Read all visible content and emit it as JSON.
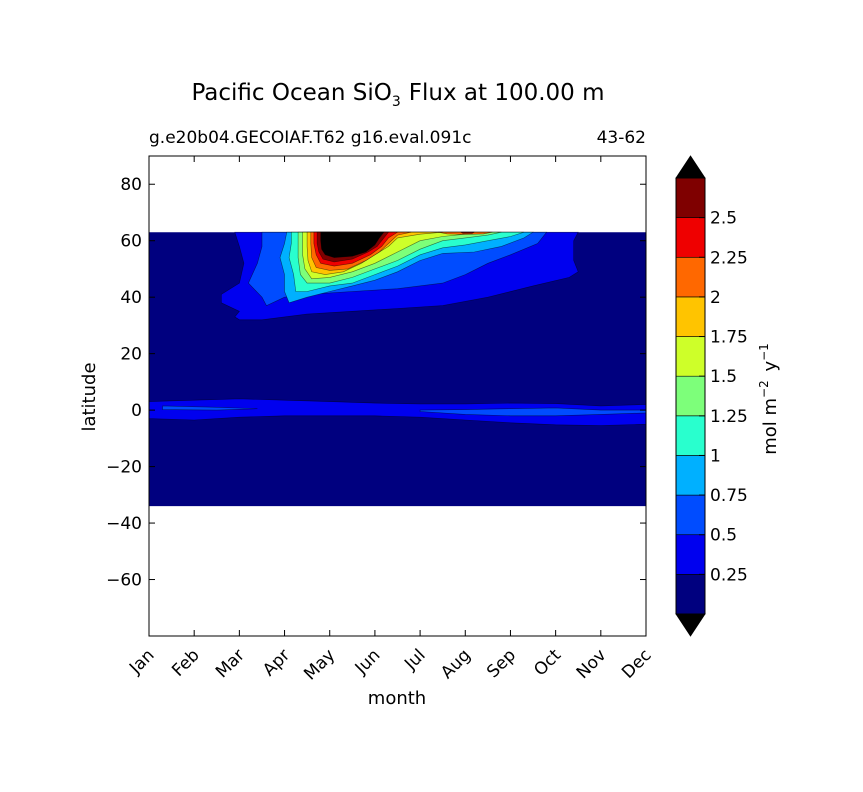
{
  "chart_data": {
    "type": "heatmap",
    "title": "Pacific Ocean SiO",
    "title_subscript": "3",
    "title_suffix": "Flux at 100.00 m",
    "subtitle_left": "g.e20b04.GECOIAF.T62 g16.eval.091c",
    "subtitle_right": "43-62",
    "xlabel": "month",
    "ylabel": "latitude",
    "x_categories": [
      "Jan",
      "Feb",
      "Mar",
      "Apr",
      "May",
      "Jun",
      "Jul",
      "Aug",
      "Sep",
      "Oct",
      "Nov",
      "Dec"
    ],
    "xlim": [
      0,
      11
    ],
    "ylim": [
      -80,
      90
    ],
    "y_ticks": [
      {
        "value": 80,
        "label": "80"
      },
      {
        "value": 60,
        "label": "60"
      },
      {
        "value": 40,
        "label": "40"
      },
      {
        "value": 20,
        "label": "20"
      },
      {
        "value": 0,
        "label": "0"
      },
      {
        "value": -20,
        "label": "−20"
      },
      {
        "value": -40,
        "label": "−40"
      },
      {
        "value": -60,
        "label": "−60"
      }
    ],
    "y_ticks_note": "",
    "data_lat_range": [
      -34,
      63
    ],
    "colorbar": {
      "label": "mol m",
      "label_sup1": "−2",
      "label_mid": " y",
      "label_sup2": "−1",
      "levels": [
        0,
        0.25,
        0.5,
        0.75,
        1,
        1.25,
        1.5,
        1.75,
        2,
        2.25,
        2.5,
        2.75
      ],
      "tick_labels": [
        "0.25",
        "0.5",
        "0.75",
        "1",
        "1.25",
        "1.5",
        "1.75",
        "2",
        "2.25",
        "2.5"
      ],
      "colors": [
        "#00007f",
        "#0000ef",
        "#004cff",
        "#00b0ff",
        "#29ffce",
        "#7dff7a",
        "#ceff29",
        "#ffc400",
        "#ff6800",
        "#ef0000",
        "#7f0000"
      ],
      "extend_low_color": "#000000",
      "extend_high_color": "#000000"
    },
    "regions": [
      {
        "level_index": 0,
        "name": "background",
        "polygon": [
          [
            0,
            63
          ],
          [
            11,
            63
          ],
          [
            11,
            -34
          ],
          [
            0,
            -34
          ]
        ]
      },
      {
        "level_index": 1,
        "name": "north-band-0.25",
        "polygon": [
          [
            1.9,
            63
          ],
          [
            9.5,
            63
          ],
          [
            9.4,
            60
          ],
          [
            9.4,
            53
          ],
          [
            9.5,
            49
          ],
          [
            9.3,
            47
          ],
          [
            8.5,
            44
          ],
          [
            7.5,
            40
          ],
          [
            6.5,
            37
          ],
          [
            5.5,
            36
          ],
          [
            4.5,
            35
          ],
          [
            3.5,
            34
          ],
          [
            2.5,
            32
          ],
          [
            2,
            32
          ],
          [
            1.9,
            33
          ],
          [
            2.0,
            35
          ],
          [
            1.6,
            38
          ],
          [
            1.6,
            41
          ],
          [
            2.0,
            45
          ],
          [
            2.1,
            52
          ],
          [
            2.0,
            58
          ]
        ]
      },
      {
        "level_index": 1,
        "name": "equatorial-band-west",
        "polygon": [
          [
            0,
            3
          ],
          [
            1,
            3.5
          ],
          [
            2,
            4
          ],
          [
            3,
            3.5
          ],
          [
            4,
            3
          ],
          [
            5,
            2.5
          ],
          [
            6,
            2.2
          ],
          [
            7,
            2.2
          ],
          [
            8,
            2.5
          ],
          [
            9,
            2.3
          ],
          [
            10,
            1.5
          ],
          [
            11,
            2
          ],
          [
            11,
            -5
          ],
          [
            10,
            -5.5
          ],
          [
            9,
            -5.2
          ],
          [
            8,
            -4.5
          ],
          [
            7,
            -3.5
          ],
          [
            6,
            -2.5
          ],
          [
            5,
            -2
          ],
          [
            4,
            -2
          ],
          [
            3,
            -2
          ],
          [
            2,
            -2.5
          ],
          [
            1,
            -3.5
          ],
          [
            0,
            -3
          ]
        ]
      },
      {
        "level_index": 2,
        "name": "north-band-0.5",
        "polygon": [
          [
            2.5,
            63
          ],
          [
            8.8,
            63
          ],
          [
            8.6,
            59
          ],
          [
            8.0,
            55
          ],
          [
            7.5,
            52
          ],
          [
            7.0,
            48
          ],
          [
            6.5,
            45
          ],
          [
            5.5,
            43
          ],
          [
            4.5,
            42
          ],
          [
            3.5,
            41
          ],
          [
            3.0,
            40
          ],
          [
            2.6,
            37
          ],
          [
            2.5,
            40
          ],
          [
            2.2,
            45
          ],
          [
            2.4,
            52
          ],
          [
            2.5,
            58
          ]
        ]
      },
      {
        "level_index": 2,
        "name": "equatorial-band-east",
        "polygon": [
          [
            6,
            0
          ],
          [
            7,
            0.2
          ],
          [
            8,
            0.5
          ],
          [
            9,
            0.8
          ],
          [
            10,
            0
          ],
          [
            11,
            0
          ],
          [
            11,
            -1
          ],
          [
            10,
            -1.5
          ],
          [
            9,
            -2
          ],
          [
            8,
            -2
          ],
          [
            7,
            -1.5
          ],
          [
            6,
            -0.5
          ]
        ]
      },
      {
        "level_index": 2,
        "name": "equatorial-band-sliver",
        "polygon": [
          [
            0.3,
            1.5
          ],
          [
            1.5,
            1.0
          ],
          [
            2.4,
            0.5
          ],
          [
            1.5,
            0.0
          ],
          [
            0.3,
            0.2
          ]
        ]
      },
      {
        "level_index": 3,
        "name": "north-band-0.75",
        "polygon": [
          [
            3.05,
            63
          ],
          [
            8.5,
            63
          ],
          [
            8.3,
            61
          ],
          [
            7.8,
            58
          ],
          [
            7.2,
            56
          ],
          [
            6.5,
            55.5
          ],
          [
            6.0,
            53
          ],
          [
            5.5,
            49
          ],
          [
            5.0,
            46
          ],
          [
            4.5,
            44
          ],
          [
            4.0,
            42
          ],
          [
            3.5,
            40
          ],
          [
            3.1,
            38
          ],
          [
            3.0,
            42
          ],
          [
            3.0,
            48
          ],
          [
            2.9,
            54
          ],
          [
            3.0,
            59
          ]
        ]
      },
      {
        "level_index": 4,
        "name": "north-band-1",
        "polygon": [
          [
            3.15,
            63
          ],
          [
            8.3,
            63
          ],
          [
            8.0,
            61.5
          ],
          [
            7.5,
            60
          ],
          [
            7.0,
            58.5
          ],
          [
            6.5,
            57.5
          ],
          [
            6.0,
            55
          ],
          [
            5.5,
            51
          ],
          [
            5.0,
            48
          ],
          [
            4.5,
            45
          ],
          [
            4.0,
            44
          ],
          [
            3.5,
            42
          ],
          [
            3.25,
            42
          ],
          [
            3.2,
            48
          ],
          [
            3.1,
            54
          ],
          [
            3.15,
            59
          ]
        ]
      },
      {
        "level_index": 5,
        "name": "north-band-1.25",
        "polygon": [
          [
            3.3,
            63
          ],
          [
            7.8,
            63
          ],
          [
            7.5,
            62
          ],
          [
            7.0,
            61
          ],
          [
            6.5,
            60
          ],
          [
            6.0,
            57
          ],
          [
            5.5,
            53
          ],
          [
            5.0,
            50
          ],
          [
            4.5,
            47
          ],
          [
            4.0,
            45
          ],
          [
            3.5,
            45
          ],
          [
            3.35,
            48
          ],
          [
            3.3,
            54
          ],
          [
            3.3,
            59
          ]
        ]
      },
      {
        "level_index": 6,
        "name": "north-band-1.5",
        "polygon": [
          [
            3.4,
            63
          ],
          [
            7.2,
            63
          ],
          [
            7.0,
            62.3
          ],
          [
            6.5,
            61.5
          ],
          [
            6.0,
            60
          ],
          [
            5.5,
            56
          ],
          [
            5.0,
            52
          ],
          [
            4.5,
            49
          ],
          [
            4.0,
            47
          ],
          [
            3.6,
            46.5
          ],
          [
            3.45,
            50
          ],
          [
            3.4,
            55
          ],
          [
            3.4,
            59
          ]
        ]
      },
      {
        "level_index": 7,
        "name": "north-band-1.75",
        "polygon": [
          [
            3.5,
            63
          ],
          [
            6.5,
            63
          ],
          [
            6.0,
            62.3
          ],
          [
            5.5,
            61
          ],
          [
            5.3,
            58
          ],
          [
            5.0,
            55
          ],
          [
            4.7,
            52
          ],
          [
            4.3,
            49
          ],
          [
            3.9,
            48
          ],
          [
            3.6,
            49
          ],
          [
            3.52,
            53
          ],
          [
            3.5,
            58
          ]
        ]
      },
      {
        "level_index": 8,
        "name": "north-band-2",
        "polygon": [
          [
            3.58,
            63
          ],
          [
            5.8,
            63
          ],
          [
            5.5,
            62
          ],
          [
            5.3,
            59
          ],
          [
            5.1,
            56
          ],
          [
            4.8,
            53
          ],
          [
            4.4,
            50
          ],
          [
            4.0,
            49.5
          ],
          [
            3.7,
            50.5
          ],
          [
            3.6,
            54
          ],
          [
            3.58,
            59
          ]
        ]
      },
      {
        "level_index": 9,
        "name": "north-band-2.25",
        "polygon": [
          [
            3.65,
            63
          ],
          [
            5.5,
            63
          ],
          [
            5.3,
            61
          ],
          [
            5.15,
            58
          ],
          [
            4.9,
            55
          ],
          [
            4.5,
            52
          ],
          [
            4.1,
            51
          ],
          [
            3.8,
            52
          ],
          [
            3.7,
            55
          ],
          [
            3.65,
            59
          ]
        ]
      },
      {
        "level_index": 10,
        "name": "north-band-2.5",
        "polygon": [
          [
            3.72,
            63
          ],
          [
            5.3,
            63
          ],
          [
            5.2,
            61
          ],
          [
            5.05,
            58
          ],
          [
            4.85,
            56
          ],
          [
            4.5,
            53.5
          ],
          [
            4.1,
            52.5
          ],
          [
            3.85,
            53.5
          ],
          [
            3.76,
            56
          ],
          [
            3.72,
            59
          ]
        ]
      },
      {
        "level_index": 11,
        "name": "north-core-max",
        "polygon": [
          [
            3.8,
            63
          ],
          [
            5.2,
            63
          ],
          [
            5.1,
            61
          ],
          [
            5.0,
            58.5
          ],
          [
            4.8,
            56
          ],
          [
            4.5,
            54.5
          ],
          [
            4.1,
            54
          ],
          [
            3.9,
            55
          ],
          [
            3.82,
            57
          ],
          [
            3.8,
            60
          ]
        ]
      },
      {
        "level_index": 8,
        "name": "north-streak-aug",
        "polygon": [
          [
            6.4,
            63
          ],
          [
            7.6,
            63
          ],
          [
            7.4,
            62.4
          ],
          [
            7.0,
            62.2
          ],
          [
            6.6,
            62.4
          ]
        ]
      },
      {
        "level_index": 10,
        "name": "north-streak-aug-core",
        "polygon": [
          [
            6.9,
            63
          ],
          [
            7.2,
            63
          ],
          [
            7.15,
            62.6
          ],
          [
            6.95,
            62.6
          ]
        ]
      }
    ]
  }
}
